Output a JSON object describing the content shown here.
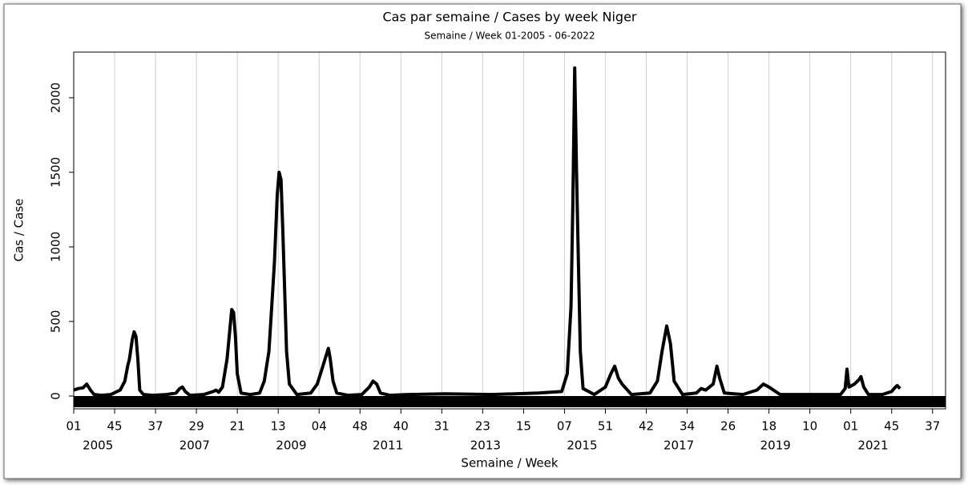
{
  "chart_data": {
    "type": "line",
    "title": "Cas par semaine / Cases by week Niger",
    "subtitle": "Semaine / Week 01-2005 - 06-2022",
    "x_label": "Semaine / Week",
    "y_label": "Cas / Case",
    "color": "#000000",
    "grid": true,
    "x": [
      0,
      5,
      10,
      14,
      18,
      22,
      30,
      40,
      50,
      55,
      58,
      60,
      63,
      65,
      67,
      69,
      71,
      75,
      85,
      100,
      110,
      114,
      117,
      120,
      125,
      140,
      150,
      153,
      156,
      160,
      165,
      168,
      170,
      172,
      174,
      176,
      180,
      190,
      200,
      205,
      210,
      213,
      216,
      219,
      221,
      223,
      225,
      227,
      229,
      232,
      240,
      255,
      262,
      268,
      272,
      274,
      276,
      279,
      283,
      295,
      310,
      318,
      322,
      326,
      330,
      340,
      360,
      400,
      450,
      500,
      525,
      531,
      535,
      537,
      539,
      541,
      543,
      545,
      548,
      560,
      572,
      578,
      582,
      586,
      590,
      600,
      620,
      628,
      633,
      638,
      642,
      646,
      655,
      670,
      675,
      680,
      688,
      692,
      695,
      700,
      720,
      735,
      742,
      748,
      760,
      800,
      825,
      830,
      832,
      834,
      840,
      845,
      847,
      850,
      855,
      870,
      880,
      884,
      886,
      889
    ],
    "values": [
      40,
      50,
      55,
      80,
      40,
      10,
      5,
      10,
      40,
      100,
      200,
      250,
      380,
      430,
      400,
      250,
      40,
      10,
      5,
      10,
      20,
      50,
      60,
      30,
      5,
      10,
      30,
      40,
      25,
      60,
      250,
      450,
      580,
      560,
      400,
      150,
      20,
      10,
      20,
      100,
      300,
      600,
      900,
      1350,
      1500,
      1450,
      1100,
      700,
      300,
      80,
      10,
      20,
      80,
      200,
      280,
      320,
      250,
      100,
      20,
      5,
      10,
      60,
      100,
      80,
      20,
      5,
      10,
      15,
      10,
      20,
      30,
      150,
      600,
      1300,
      2200,
      1500,
      900,
      300,
      50,
      10,
      60,
      150,
      200,
      120,
      80,
      10,
      20,
      100,
      300,
      470,
      350,
      100,
      10,
      20,
      50,
      40,
      80,
      200,
      120,
      20,
      10,
      40,
      80,
      60,
      10,
      10,
      10,
      50,
      180,
      60,
      80,
      110,
      130,
      60,
      10,
      10,
      30,
      60,
      70,
      50
    ],
    "xlim": [
      0,
      938
    ],
    "xticks": [
      {
        "value": 0,
        "label": "01"
      },
      {
        "value": 44,
        "label": "45"
      },
      {
        "value": 88,
        "label": "37"
      },
      {
        "value": 132,
        "label": "29"
      },
      {
        "value": 176,
        "label": "21"
      },
      {
        "value": 220,
        "label": "13"
      },
      {
        "value": 264,
        "label": "04"
      },
      {
        "value": 308,
        "label": "48"
      },
      {
        "value": 352,
        "label": "40"
      },
      {
        "value": 396,
        "label": "31"
      },
      {
        "value": 440,
        "label": "23"
      },
      {
        "value": 484,
        "label": "15"
      },
      {
        "value": 528,
        "label": "07"
      },
      {
        "value": 572,
        "label": "51"
      },
      {
        "value": 616,
        "label": "42"
      },
      {
        "value": 660,
        "label": "34"
      },
      {
        "value": 704,
        "label": "26"
      },
      {
        "value": 748,
        "label": "18"
      },
      {
        "value": 792,
        "label": "10"
      },
      {
        "value": 836,
        "label": "01"
      },
      {
        "value": 880,
        "label": "45"
      },
      {
        "value": 924,
        "label": "37"
      }
    ],
    "year_ticks": [
      {
        "value": 26,
        "label": "2005"
      },
      {
        "value": 130,
        "label": "2007"
      },
      {
        "value": 234,
        "label": "2009"
      },
      {
        "value": 338,
        "label": "2011"
      },
      {
        "value": 443,
        "label": "2013"
      },
      {
        "value": 547,
        "label": "2015"
      },
      {
        "value": 651,
        "label": "2017"
      },
      {
        "value": 755,
        "label": "2019"
      },
      {
        "value": 860,
        "label": "2021"
      }
    ],
    "ylim": [
      -86,
      2306
    ],
    "yticks": [
      0,
      500,
      1000,
      1500,
      2000
    ]
  }
}
